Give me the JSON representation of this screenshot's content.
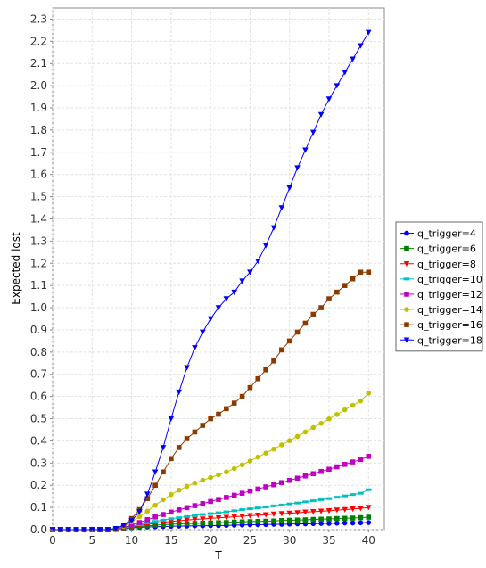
{
  "chart_data": {
    "type": "line",
    "xlabel": "T",
    "ylabel": "Expected lost",
    "xlim": [
      0,
      42
    ],
    "ylim": [
      0,
      2.35
    ],
    "x_ticks": [
      0,
      5,
      10,
      15,
      20,
      25,
      30,
      35,
      40
    ],
    "y_ticks": [
      0.0,
      0.1,
      0.2,
      0.3,
      0.4,
      0.5,
      0.6,
      0.7,
      0.8,
      0.9,
      1.0,
      1.1,
      1.2,
      1.3,
      1.4,
      1.5,
      1.6,
      1.7,
      1.8,
      1.9,
      2.0,
      2.1,
      2.2,
      2.3
    ],
    "x_tick_labels": [
      "0",
      "5",
      "10",
      "15",
      "20",
      "25",
      "30",
      "35",
      "40"
    ],
    "y_tick_labels": [
      "0.0",
      "0.1",
      "0.2",
      "0.3",
      "0.4",
      "0.5",
      "0.6",
      "0.7",
      "0.8",
      "0.9",
      "1.0",
      "1.1",
      "1.2",
      "1.3",
      "1.4",
      "1.5",
      "1.6",
      "1.7",
      "1.8",
      "1.9",
      "2.0",
      "2.1",
      "2.2",
      "2.3"
    ],
    "grid": true,
    "legend_position": "right",
    "x": [
      0,
      1,
      2,
      3,
      4,
      5,
      6,
      7,
      8,
      9,
      10,
      11,
      12,
      13,
      14,
      15,
      16,
      17,
      18,
      19,
      20,
      21,
      22,
      23,
      24,
      25,
      26,
      27,
      28,
      29,
      30,
      31,
      32,
      33,
      34,
      35,
      36,
      37,
      38,
      39,
      40
    ],
    "series": [
      {
        "name": "q_trigger=4",
        "color": "#0000ff",
        "marker": "circle",
        "values": [
          0,
          0,
          0,
          0,
          0,
          0,
          0,
          0,
          0.002,
          0.005,
          0.008,
          0.01,
          0.012,
          0.013,
          0.014,
          0.015,
          0.016,
          0.016,
          0.017,
          0.017,
          0.018,
          0.018,
          0.019,
          0.02,
          0.021,
          0.022,
          0.022,
          0.023,
          0.024,
          0.024,
          0.025,
          0.026,
          0.026,
          0.027,
          0.028,
          0.028,
          0.029,
          0.03,
          0.03,
          0.031,
          0.032
        ]
      },
      {
        "name": "q_trigger=6",
        "color": "#008000",
        "marker": "square",
        "values": [
          0,
          0,
          0,
          0,
          0,
          0,
          0,
          0,
          0.001,
          0.005,
          0.01,
          0.014,
          0.017,
          0.02,
          0.022,
          0.024,
          0.026,
          0.027,
          0.028,
          0.029,
          0.03,
          0.031,
          0.032,
          0.034,
          0.035,
          0.036,
          0.037,
          0.038,
          0.039,
          0.041,
          0.042,
          0.043,
          0.044,
          0.046,
          0.047,
          0.048,
          0.05,
          0.051,
          0.052,
          0.054,
          0.056
        ]
      },
      {
        "name": "q_trigger=8",
        "color": "#ff0000",
        "marker": "triangle-down",
        "values": [
          0,
          0,
          0,
          0,
          0,
          0,
          0,
          0,
          0.001,
          0.005,
          0.012,
          0.018,
          0.024,
          0.029,
          0.033,
          0.037,
          0.04,
          0.043,
          0.046,
          0.048,
          0.051,
          0.053,
          0.055,
          0.058,
          0.06,
          0.063,
          0.065,
          0.067,
          0.07,
          0.072,
          0.074,
          0.076,
          0.079,
          0.081,
          0.083,
          0.085,
          0.088,
          0.09,
          0.093,
          0.096,
          0.1
        ]
      },
      {
        "name": "q_trigger=10",
        "color": "#00c0c0",
        "marker": "dash",
        "values": [
          0,
          0,
          0,
          0,
          0,
          0,
          0,
          0,
          0.002,
          0.007,
          0.015,
          0.022,
          0.03,
          0.037,
          0.043,
          0.049,
          0.054,
          0.059,
          0.064,
          0.068,
          0.072,
          0.076,
          0.08,
          0.085,
          0.09,
          0.094,
          0.098,
          0.102,
          0.107,
          0.111,
          0.116,
          0.12,
          0.125,
          0.13,
          0.135,
          0.14,
          0.146,
          0.152,
          0.158,
          0.164,
          0.18
        ]
      },
      {
        "name": "q_trigger=12",
        "color": "#c000c0",
        "marker": "square",
        "values": [
          0,
          0,
          0,
          0,
          0,
          0,
          0,
          0,
          0.002,
          0.01,
          0.02,
          0.032,
          0.045,
          0.057,
          0.068,
          0.079,
          0.089,
          0.099,
          0.108,
          0.117,
          0.127,
          0.136,
          0.145,
          0.155,
          0.164,
          0.174,
          0.183,
          0.193,
          0.202,
          0.212,
          0.222,
          0.232,
          0.242,
          0.252,
          0.262,
          0.272,
          0.283,
          0.294,
          0.305,
          0.316,
          0.33
        ]
      },
      {
        "name": "q_trigger=14",
        "color": "#c0c000",
        "marker": "circle",
        "values": [
          0,
          0,
          0,
          0,
          0,
          0,
          0,
          0,
          0.003,
          0.015,
          0.035,
          0.058,
          0.083,
          0.11,
          0.135,
          0.158,
          0.178,
          0.195,
          0.21,
          0.223,
          0.235,
          0.247,
          0.26,
          0.275,
          0.292,
          0.309,
          0.327,
          0.345,
          0.363,
          0.382,
          0.401,
          0.42,
          0.44,
          0.46,
          0.479,
          0.499,
          0.519,
          0.54,
          0.56,
          0.58,
          0.615
        ]
      },
      {
        "name": "q_trigger=16",
        "color": "#8b3a00",
        "marker": "square",
        "values": [
          0,
          0,
          0,
          0,
          0,
          0,
          0,
          0,
          0.005,
          0.02,
          0.05,
          0.09,
          0.14,
          0.2,
          0.26,
          0.32,
          0.37,
          0.41,
          0.44,
          0.47,
          0.5,
          0.52,
          0.545,
          0.57,
          0.6,
          0.64,
          0.68,
          0.72,
          0.76,
          0.81,
          0.85,
          0.89,
          0.93,
          0.97,
          1.0,
          1.04,
          1.07,
          1.1,
          1.13,
          1.16,
          1.16
        ]
      },
      {
        "name": "q_trigger=18",
        "color": "#0000ff",
        "marker": "triangle-down",
        "values": [
          0,
          0,
          0,
          0,
          0,
          0,
          0,
          0,
          0.005,
          0.02,
          0.04,
          0.08,
          0.16,
          0.26,
          0.37,
          0.5,
          0.62,
          0.73,
          0.82,
          0.89,
          0.95,
          1.0,
          1.04,
          1.07,
          1.12,
          1.16,
          1.21,
          1.28,
          1.36,
          1.45,
          1.54,
          1.63,
          1.71,
          1.79,
          1.87,
          1.94,
          2.0,
          2.06,
          2.12,
          2.18,
          2.24
        ]
      }
    ]
  }
}
